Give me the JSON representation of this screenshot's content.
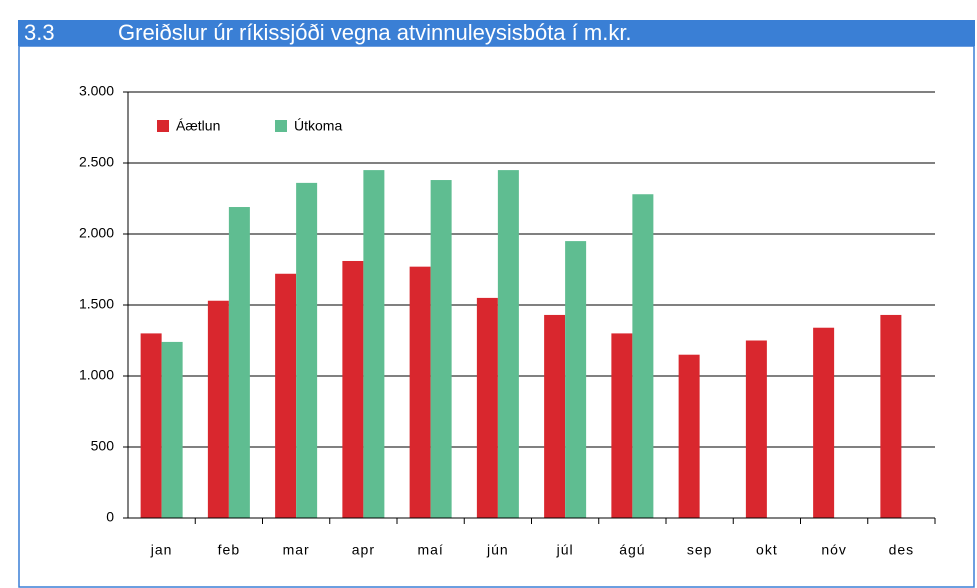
{
  "section": "3.3",
  "chart_data": {
    "type": "bar",
    "title": "Greiðslur úr ríkissjóði vegna atvinnuleysisbóta í m.kr.",
    "categories": [
      "jan",
      "feb",
      "mar",
      "apr",
      "maí",
      "jún",
      "júl",
      "ágú",
      "sep",
      "okt",
      "nóv",
      "des"
    ],
    "series": [
      {
        "name": "Áætlun",
        "color": "#d9272e",
        "values": [
          1300,
          1530,
          1720,
          1810,
          1770,
          1550,
          1430,
          1300,
          1150,
          1250,
          1340,
          1430
        ]
      },
      {
        "name": "Útkoma",
        "color": "#5fbd91",
        "values": [
          1240,
          2190,
          2360,
          2450,
          2380,
          2450,
          1950,
          2280,
          null,
          null,
          null,
          null
        ]
      }
    ],
    "ylim": [
      0,
      3000
    ],
    "yticks": [
      0,
      500,
      {
        "value": 1000,
        "label": "1.000"
      },
      {
        "value": 1500,
        "label": "1.500"
      },
      {
        "value": 2000,
        "label": "2.000"
      },
      {
        "value": 2500,
        "label": "2.500"
      },
      {
        "value": 3000,
        "label": "3.000"
      }
    ],
    "grid": true,
    "legend": "top-left"
  }
}
